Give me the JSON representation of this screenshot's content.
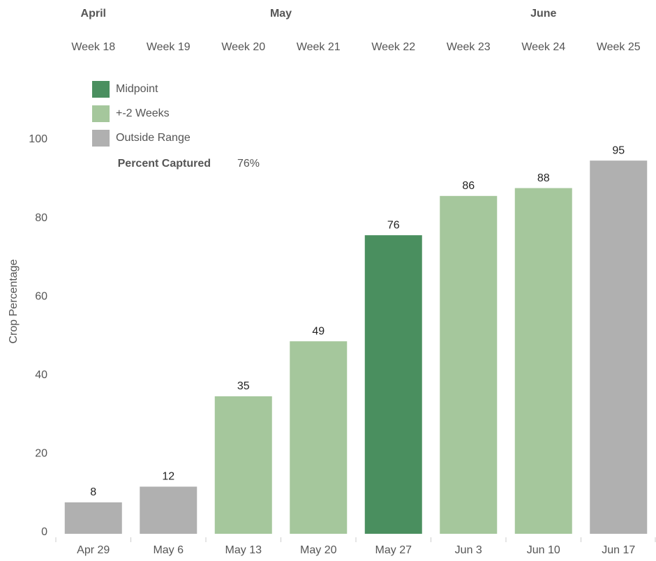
{
  "chart_data": {
    "type": "bar",
    "months": [
      "April",
      "May",
      "June"
    ],
    "weeks": [
      "Week 18",
      "Week 19",
      "Week 20",
      "Week 21",
      "Week 22",
      "Week 23",
      "Week 24",
      "Week 25"
    ],
    "legend": [
      {
        "name": "Midpoint",
        "color": "#4a8f5f"
      },
      {
        "name": "+-2 Weeks",
        "color": "#a5c79c"
      },
      {
        "name": "Outside Range",
        "color": "#b0b0b0"
      }
    ],
    "summary": {
      "label": "Percent Captured",
      "value_label": "76%"
    },
    "y_label": "Crop Percentage",
    "categories": [
      "Apr 29",
      "May 6",
      "May 13",
      "May 20",
      "May 27",
      "Jun 3",
      "Jun 10",
      "Jun 17"
    ],
    "values": [
      8,
      12,
      35,
      49,
      76,
      86,
      88,
      95
    ],
    "colors": [
      "#b0b0b0",
      "#b0b0b0",
      "#a5c79c",
      "#a5c79c",
      "#4a8f5f",
      "#a5c79c",
      "#a5c79c",
      "#b0b0b0"
    ],
    "ylim": [
      0,
      100
    ],
    "yticks": [
      0,
      20,
      40,
      60,
      80,
      100
    ],
    "grid": false
  }
}
